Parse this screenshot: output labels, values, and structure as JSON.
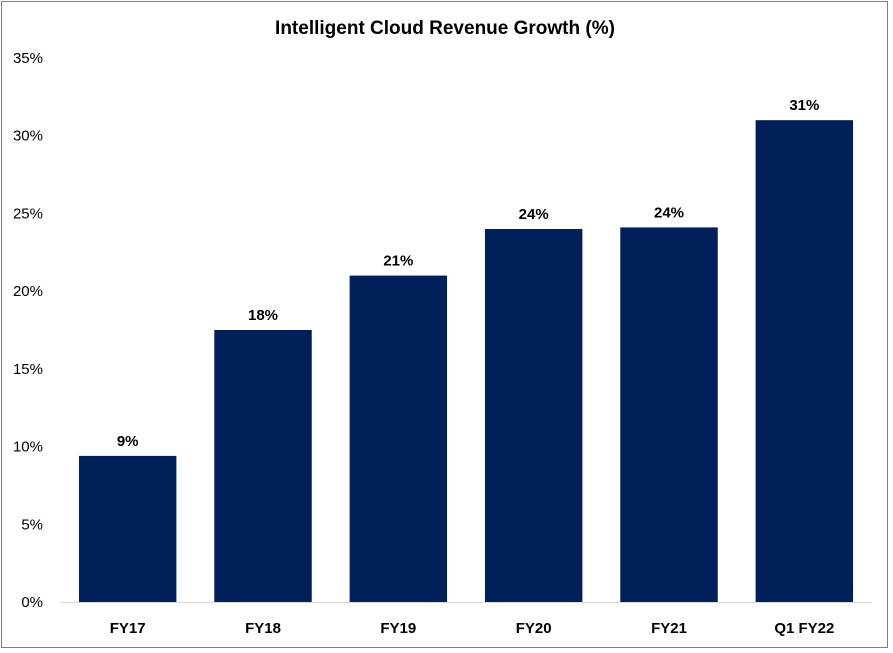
{
  "chart_data": {
    "type": "bar",
    "title": "Intelligent Cloud Revenue Growth (%)",
    "xlabel": "",
    "ylabel": "",
    "categories": [
      "FY17",
      "FY18",
      "FY19",
      "FY20",
      "FY21",
      "Q1 FY22"
    ],
    "values": [
      9.4,
      17.5,
      21.0,
      24.0,
      24.1,
      31.0
    ],
    "data_labels": [
      "9%",
      "18%",
      "21%",
      "24%",
      "24%",
      "31%"
    ],
    "ylim": [
      0,
      35
    ],
    "yticks": [
      0,
      5,
      10,
      15,
      20,
      25,
      30,
      35
    ],
    "ytick_labels": [
      "0%",
      "5%",
      "10%",
      "15%",
      "20%",
      "25%",
      "30%",
      "35%"
    ],
    "grid": false,
    "legend": "none",
    "colors": {
      "bar": "#00205B",
      "axis": "#d9d9d9",
      "border": "#7f7f7f"
    }
  }
}
